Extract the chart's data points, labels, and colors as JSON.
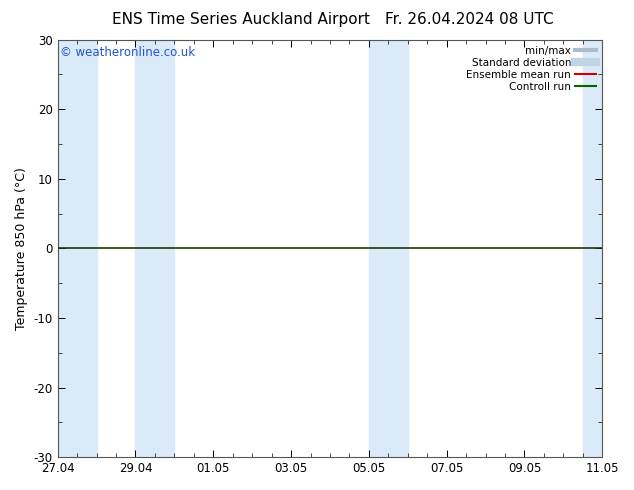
{
  "title_left": "ENS Time Series Auckland Airport",
  "title_right": "Fr. 26.04.2024 08 UTC",
  "ylabel": "Temperature 850 hPa (°C)",
  "watermark": "© weatheronline.co.uk",
  "ylim": [
    -30,
    30
  ],
  "yticks": [
    -30,
    -20,
    -10,
    0,
    10,
    20,
    30
  ],
  "x_tick_labels": [
    "27.04",
    "29.04",
    "01.05",
    "03.05",
    "05.05",
    "07.05",
    "09.05",
    "11.05"
  ],
  "x_tick_positions": [
    0,
    2,
    4,
    6,
    8,
    10,
    12,
    14
  ],
  "x_total": 14,
  "bg_color": "#ffffff",
  "plot_bg_color": "#ffffff",
  "shaded_color": "#daeaf8",
  "zero_line_color": "#1a3a00",
  "zero_line_y": 0,
  "legend_items": [
    {
      "label": "min/max",
      "color": "#aabccc",
      "lw": 3,
      "ls": "-"
    },
    {
      "label": "Standard deviation",
      "color": "#c0d4e4",
      "lw": 6,
      "ls": "-"
    },
    {
      "label": "Ensemble mean run",
      "color": "#cc0000",
      "lw": 1.5,
      "ls": "-"
    },
    {
      "label": "Controll run",
      "color": "#006600",
      "lw": 1.5,
      "ls": "-"
    }
  ],
  "title_fontsize": 11,
  "watermark_color": "#2255cc",
  "watermark_fontsize": 8.5,
  "shaded_regions_x": [
    [
      0,
      1.0
    ],
    [
      2.0,
      3.0
    ],
    [
      8.0,
      9.0
    ],
    [
      13.5,
      14.5
    ]
  ]
}
